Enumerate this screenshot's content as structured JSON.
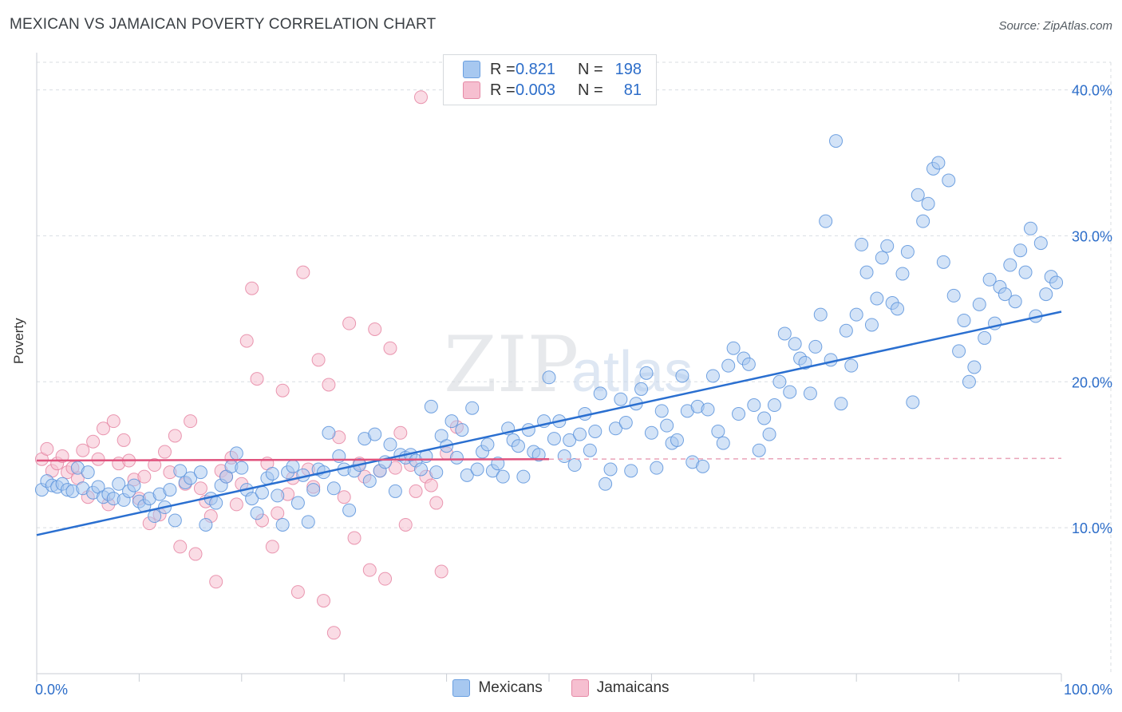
{
  "header": {
    "title": "MEXICAN VS JAMAICAN POVERTY CORRELATION CHART",
    "source": "Source: ZipAtlas.com"
  },
  "legend": {
    "rows": [
      {
        "r_label": "R =",
        "r_value": "0.821",
        "n_label": "N =",
        "n_value": "198",
        "color": "#a7c8f0",
        "border": "#6a9fe0"
      },
      {
        "r_label": "R =",
        "r_value": "0.003",
        "n_label": "N =",
        "n_value": "81",
        "color": "#f6bfd0",
        "border": "#e58aa6"
      }
    ]
  },
  "bottom_legend": [
    {
      "label": "Mexicans",
      "color": "#a7c8f0",
      "border": "#6a9fe0"
    },
    {
      "label": "Jamaicans",
      "color": "#f6bfd0",
      "border": "#e58aa6"
    }
  ],
  "watermark": {
    "text1": "ZIP",
    "text2": "atlas"
  },
  "chart_data": {
    "type": "scatter",
    "title": "MEXICAN VS JAMAICAN POVERTY CORRELATION CHART",
    "xlabel": "",
    "ylabel": "Poverty",
    "xlim": [
      0,
      100
    ],
    "ylim": [
      0,
      42
    ],
    "x_tick_labels": [
      "0.0%",
      "100.0%"
    ],
    "y_ticks": [
      10,
      20,
      30,
      40
    ],
    "y_tick_labels": [
      "10.0%",
      "20.0%",
      "30.0%",
      "40.0%"
    ],
    "grid": true,
    "series": [
      {
        "name": "Mexicans",
        "color": "#5b93dc",
        "fill": "#a7c8f0",
        "trend": {
          "x": [
            0,
            100
          ],
          "y": [
            9.5,
            24.8
          ]
        },
        "points": [
          [
            0.5,
            12.6
          ],
          [
            1,
            13.2
          ],
          [
            1.5,
            12.9
          ],
          [
            2,
            12.8
          ],
          [
            2.5,
            13.0
          ],
          [
            3,
            12.6
          ],
          [
            3.5,
            12.5
          ],
          [
            4,
            14.1
          ],
          [
            4.5,
            12.7
          ],
          [
            5,
            13.8
          ],
          [
            5.5,
            12.4
          ],
          [
            6,
            12.8
          ],
          [
            6.5,
            12.1
          ],
          [
            7,
            12.3
          ],
          [
            7.5,
            12.0
          ],
          [
            8,
            13.0
          ],
          [
            8.5,
            11.9
          ],
          [
            9,
            12.5
          ],
          [
            9.5,
            12.9
          ],
          [
            10,
            11.8
          ],
          [
            10.5,
            11.5
          ],
          [
            11,
            12.0
          ],
          [
            11.5,
            10.8
          ],
          [
            12,
            12.3
          ],
          [
            12.5,
            11.4
          ],
          [
            13,
            12.6
          ],
          [
            13.5,
            10.5
          ],
          [
            14,
            13.9
          ],
          [
            14.5,
            13.1
          ],
          [
            15,
            13.4
          ],
          [
            16,
            13.8
          ],
          [
            16.5,
            10.2
          ],
          [
            17,
            12.0
          ],
          [
            17.5,
            11.7
          ],
          [
            18,
            12.9
          ],
          [
            18.5,
            13.5
          ],
          [
            19,
            14.2
          ],
          [
            19.5,
            15.1
          ],
          [
            20,
            14.1
          ],
          [
            20.5,
            12.6
          ],
          [
            21,
            12.0
          ],
          [
            21.5,
            11.0
          ],
          [
            22,
            12.4
          ],
          [
            22.5,
            13.4
          ],
          [
            23,
            13.7
          ],
          [
            23.5,
            12.2
          ],
          [
            24,
            10.2
          ],
          [
            24.5,
            13.8
          ],
          [
            25,
            14.2
          ],
          [
            25.5,
            11.7
          ],
          [
            26,
            13.6
          ],
          [
            26.5,
            10.4
          ],
          [
            27,
            12.6
          ],
          [
            27.5,
            14.0
          ],
          [
            28,
            13.8
          ],
          [
            28.5,
            16.5
          ],
          [
            29,
            12.7
          ],
          [
            29.5,
            14.9
          ],
          [
            30,
            14.0
          ],
          [
            30.5,
            11.2
          ],
          [
            31,
            13.9
          ],
          [
            31.5,
            14.3
          ],
          [
            32,
            16.1
          ],
          [
            32.5,
            13.2
          ],
          [
            33,
            16.4
          ],
          [
            33.5,
            13.9
          ],
          [
            34,
            14.5
          ],
          [
            34.5,
            15.7
          ],
          [
            35,
            12.5
          ],
          [
            35.5,
            15.0
          ],
          [
            36,
            14.8
          ],
          [
            36.5,
            15.0
          ],
          [
            37,
            14.6
          ],
          [
            37.5,
            14.0
          ],
          [
            38,
            14.9
          ],
          [
            38.5,
            18.3
          ],
          [
            39,
            13.8
          ],
          [
            39.5,
            16.3
          ],
          [
            40,
            15.6
          ],
          [
            40.5,
            17.3
          ],
          [
            41,
            14.8
          ],
          [
            41.5,
            16.7
          ],
          [
            42,
            13.6
          ],
          [
            42.5,
            18.2
          ],
          [
            43,
            14.0
          ],
          [
            43.5,
            15.2
          ],
          [
            44,
            15.7
          ],
          [
            44.5,
            13.9
          ],
          [
            45,
            14.4
          ],
          [
            45.5,
            13.5
          ],
          [
            46,
            16.8
          ],
          [
            46.5,
            16.0
          ],
          [
            47,
            15.6
          ],
          [
            47.5,
            13.5
          ],
          [
            48,
            16.7
          ],
          [
            48.5,
            15.2
          ],
          [
            49,
            15.0
          ],
          [
            49.5,
            17.3
          ],
          [
            50,
            20.3
          ],
          [
            50.5,
            16.1
          ],
          [
            51,
            17.3
          ],
          [
            51.5,
            14.9
          ],
          [
            52,
            16.0
          ],
          [
            52.5,
            14.3
          ],
          [
            53,
            16.4
          ],
          [
            53.5,
            17.8
          ],
          [
            54,
            15.3
          ],
          [
            54.5,
            16.6
          ],
          [
            55,
            19.2
          ],
          [
            55.5,
            13.0
          ],
          [
            56,
            14.0
          ],
          [
            56.5,
            16.8
          ],
          [
            57,
            18.8
          ],
          [
            57.5,
            17.2
          ],
          [
            58,
            13.9
          ],
          [
            58.5,
            18.5
          ],
          [
            59,
            19.5
          ],
          [
            59.5,
            20.6
          ],
          [
            60,
            16.5
          ],
          [
            60.5,
            14.1
          ],
          [
            61,
            18.0
          ],
          [
            61.5,
            17.0
          ],
          [
            62,
            15.8
          ],
          [
            62.5,
            16.0
          ],
          [
            63,
            20.4
          ],
          [
            63.5,
            18.0
          ],
          [
            64,
            14.5
          ],
          [
            64.5,
            18.3
          ],
          [
            65,
            14.2
          ],
          [
            65.5,
            18.1
          ],
          [
            66,
            20.4
          ],
          [
            66.5,
            16.6
          ],
          [
            67,
            15.8
          ],
          [
            67.5,
            21.1
          ],
          [
            68,
            22.3
          ],
          [
            68.5,
            17.8
          ],
          [
            69,
            21.6
          ],
          [
            69.5,
            21.2
          ],
          [
            70,
            18.4
          ],
          [
            70.5,
            15.3
          ],
          [
            71,
            17.5
          ],
          [
            71.5,
            16.4
          ],
          [
            72,
            18.4
          ],
          [
            72.5,
            20.0
          ],
          [
            73,
            23.3
          ],
          [
            73.5,
            19.3
          ],
          [
            74,
            22.6
          ],
          [
            74.5,
            21.6
          ],
          [
            75,
            21.3
          ],
          [
            75.5,
            19.2
          ],
          [
            76,
            22.4
          ],
          [
            76.5,
            24.6
          ],
          [
            77,
            31.0
          ],
          [
            77.5,
            21.5
          ],
          [
            78,
            36.5
          ],
          [
            78.5,
            18.5
          ],
          [
            79,
            23.5
          ],
          [
            79.5,
            21.1
          ],
          [
            80,
            24.6
          ],
          [
            80.5,
            29.4
          ],
          [
            81,
            27.5
          ],
          [
            81.5,
            23.9
          ],
          [
            82,
            25.7
          ],
          [
            82.5,
            28.5
          ],
          [
            83,
            29.3
          ],
          [
            83.5,
            25.4
          ],
          [
            84,
            25.0
          ],
          [
            84.5,
            27.4
          ],
          [
            85,
            28.9
          ],
          [
            85.5,
            18.6
          ],
          [
            86,
            32.8
          ],
          [
            86.5,
            31.0
          ],
          [
            87,
            32.2
          ],
          [
            87.5,
            34.6
          ],
          [
            88,
            35.0
          ],
          [
            88.5,
            28.2
          ],
          [
            89,
            33.8
          ],
          [
            89.5,
            25.9
          ],
          [
            90,
            22.1
          ],
          [
            90.5,
            24.2
          ],
          [
            91,
            20.0
          ],
          [
            91.5,
            21.0
          ],
          [
            92,
            25.3
          ],
          [
            92.5,
            23.0
          ],
          [
            93,
            27.0
          ],
          [
            93.5,
            24.0
          ],
          [
            94,
            26.5
          ],
          [
            94.5,
            26.0
          ],
          [
            95,
            28.0
          ],
          [
            95.5,
            25.5
          ],
          [
            96,
            29.0
          ],
          [
            96.5,
            27.5
          ],
          [
            97,
            30.5
          ],
          [
            97.5,
            24.5
          ],
          [
            98,
            29.5
          ],
          [
            98.5,
            26.0
          ],
          [
            99,
            27.2
          ],
          [
            99.5,
            26.8
          ]
        ]
      },
      {
        "name": "Jamaicans",
        "color": "#e5809f",
        "fill": "#f6bfd0",
        "trend": {
          "x": [
            0,
            50
          ],
          "y": [
            14.6,
            14.7
          ]
        },
        "points": [
          [
            0.5,
            14.7
          ],
          [
            1,
            15.4
          ],
          [
            1.5,
            13.9
          ],
          [
            2,
            14.4
          ],
          [
            2.5,
            14.9
          ],
          [
            3,
            13.8
          ],
          [
            3.5,
            14.1
          ],
          [
            4,
            13.4
          ],
          [
            4.5,
            15.3
          ],
          [
            5,
            12.1
          ],
          [
            5.5,
            15.9
          ],
          [
            6,
            14.7
          ],
          [
            6.5,
            16.8
          ],
          [
            7,
            11.6
          ],
          [
            7.5,
            17.3
          ],
          [
            8,
            14.4
          ],
          [
            8.5,
            16.0
          ],
          [
            9,
            14.6
          ],
          [
            9.5,
            13.3
          ],
          [
            10,
            12.0
          ],
          [
            10.5,
            13.5
          ],
          [
            11,
            10.3
          ],
          [
            11.5,
            14.3
          ],
          [
            12,
            10.9
          ],
          [
            12.5,
            15.2
          ],
          [
            13,
            13.8
          ],
          [
            13.5,
            16.3
          ],
          [
            14,
            8.7
          ],
          [
            14.5,
            13.0
          ],
          [
            15,
            17.3
          ],
          [
            15.5,
            8.2
          ],
          [
            16,
            12.7
          ],
          [
            16.5,
            11.8
          ],
          [
            17,
            10.8
          ],
          [
            17.5,
            6.3
          ],
          [
            18,
            13.9
          ],
          [
            18.5,
            13.5
          ],
          [
            19,
            14.8
          ],
          [
            19.5,
            11.6
          ],
          [
            20,
            13.0
          ],
          [
            20.5,
            22.8
          ],
          [
            21,
            26.4
          ],
          [
            21.5,
            20.2
          ],
          [
            22,
            10.5
          ],
          [
            22.5,
            14.4
          ],
          [
            23,
            8.7
          ],
          [
            23.5,
            11.0
          ],
          [
            24,
            19.4
          ],
          [
            24.5,
            12.3
          ],
          [
            25,
            13.4
          ],
          [
            25.5,
            5.6
          ],
          [
            26,
            27.5
          ],
          [
            26.5,
            14.0
          ],
          [
            27,
            12.8
          ],
          [
            27.5,
            21.5
          ],
          [
            28,
            5.0
          ],
          [
            28.5,
            19.8
          ],
          [
            29,
            2.8
          ],
          [
            29.5,
            16.2
          ],
          [
            30,
            12.1
          ],
          [
            30.5,
            24.0
          ],
          [
            31,
            9.3
          ],
          [
            31.5,
            14.4
          ],
          [
            32,
            13.5
          ],
          [
            32.5,
            7.1
          ],
          [
            33,
            23.6
          ],
          [
            33.5,
            13.9
          ],
          [
            34,
            6.5
          ],
          [
            34.5,
            22.3
          ],
          [
            35,
            14.1
          ],
          [
            35.5,
            16.5
          ],
          [
            36,
            10.2
          ],
          [
            36.5,
            14.3
          ],
          [
            37,
            12.5
          ],
          [
            37.5,
            39.5
          ],
          [
            38,
            13.5
          ],
          [
            38.5,
            12.9
          ],
          [
            39,
            11.7
          ],
          [
            39.5,
            7.0
          ],
          [
            40,
            15.1
          ],
          [
            41,
            16.9
          ]
        ]
      }
    ]
  }
}
